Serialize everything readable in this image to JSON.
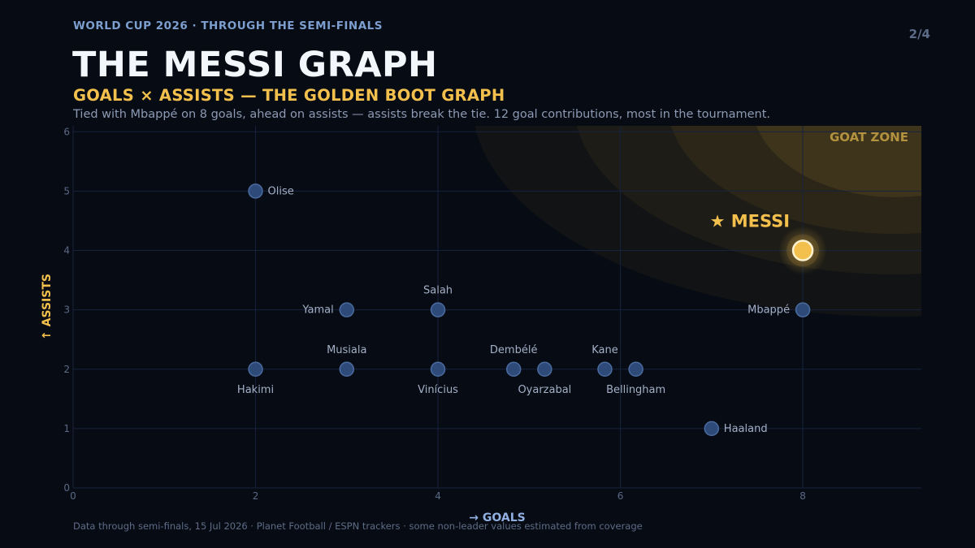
{
  "header": {
    "kicker": "WORLD CUP 2026 · THROUGH THE SEMI-FINALS",
    "page": "2/4",
    "title": "THE MESSI GRAPH",
    "subtitle": "GOALS × ASSISTS — THE GOLDEN BOOT GRAPH",
    "description": "Tied with Mbappé on 8 goals, ahead on assists — assists break the tie. 12 goal contributions, most in the tournament."
  },
  "footer": {
    "source": "Data through semi-finals, 15 Jul 2026 · Planet Football / ESPN trackers · some non-leader values estimated from coverage"
  },
  "chart_data": {
    "type": "scatter",
    "xlabel": "→  GOALS",
    "ylabel": "↑  ASSISTS",
    "xlim": [
      0,
      9.3
    ],
    "ylim": [
      0,
      6.1
    ],
    "xticks": [
      0,
      2,
      4,
      6,
      8
    ],
    "yticks": [
      0,
      1,
      2,
      3,
      4,
      5,
      6
    ],
    "grid": true,
    "zone_label": "GOAT ZONE",
    "highlight": {
      "name": "★ MESSI",
      "x": 8,
      "y": 4,
      "color": "#f3c04d"
    },
    "point_color": "#2e4a78",
    "points": [
      {
        "name": "Olise",
        "x": 2,
        "y": 5,
        "label_pos": "right"
      },
      {
        "name": "Yamal",
        "x": 3,
        "y": 3,
        "label_pos": "left"
      },
      {
        "name": "Salah",
        "x": 4,
        "y": 3,
        "label_pos": "above"
      },
      {
        "name": "Mbappé",
        "x": 8,
        "y": 3,
        "label_pos": "left"
      },
      {
        "name": "Hakimi",
        "x": 2,
        "y": 2,
        "label_pos": "below"
      },
      {
        "name": "Musiala",
        "x": 3,
        "y": 2,
        "label_pos": "above"
      },
      {
        "name": "Vinícius",
        "x": 4,
        "y": 2,
        "label_pos": "below"
      },
      {
        "name": "Dembélé",
        "x": 4.83,
        "y": 2,
        "label_pos": "above"
      },
      {
        "name": "Oyarzabal",
        "x": 5.17,
        "y": 2,
        "label_pos": "below"
      },
      {
        "name": "Kane",
        "x": 5.83,
        "y": 2,
        "label_pos": "above"
      },
      {
        "name": "Bellingham",
        "x": 6.17,
        "y": 2,
        "label_pos": "below"
      },
      {
        "name": "Haaland",
        "x": 7,
        "y": 1,
        "label_pos": "right"
      }
    ]
  }
}
